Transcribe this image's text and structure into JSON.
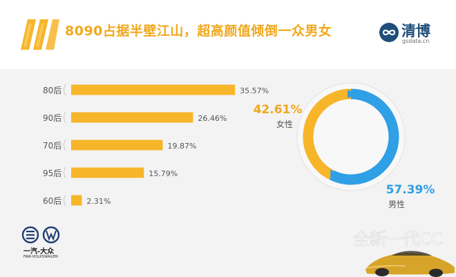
{
  "header": {
    "title": "8090占据半壁江山，超高颜值倾倒一众男女",
    "logo_name": "清博",
    "logo_url_text": "gsdata.cn"
  },
  "colors": {
    "accent": "#f7b52a",
    "blue": "#2f9fe6",
    "female_pct_color": "#f0a81c",
    "male_pct_color": "#2f9fe6"
  },
  "chart_data": [
    {
      "type": "bar",
      "orientation": "horizontal",
      "categories": [
        "80后",
        "90后",
        "70后",
        "95后",
        "60后"
      ],
      "values": [
        35.57,
        26.46,
        19.87,
        15.79,
        2.31
      ],
      "value_labels": [
        "35.57%",
        "26.46%",
        "19.87%",
        "15.79%",
        "2.31%"
      ],
      "unit": "%",
      "xlim": [
        0,
        36
      ]
    },
    {
      "type": "pie",
      "style": "donut",
      "categories": [
        "女性",
        "男性"
      ],
      "values": [
        42.61,
        57.39
      ],
      "value_labels": [
        "42.61%",
        "57.39%"
      ],
      "colors": [
        "#f7b52a",
        "#2f9fe6"
      ]
    }
  ],
  "watermark": "全新一代CC",
  "brand": {
    "name_cn": "一汽-大众",
    "name_en": "FAW-VOLKSWAGEN"
  }
}
